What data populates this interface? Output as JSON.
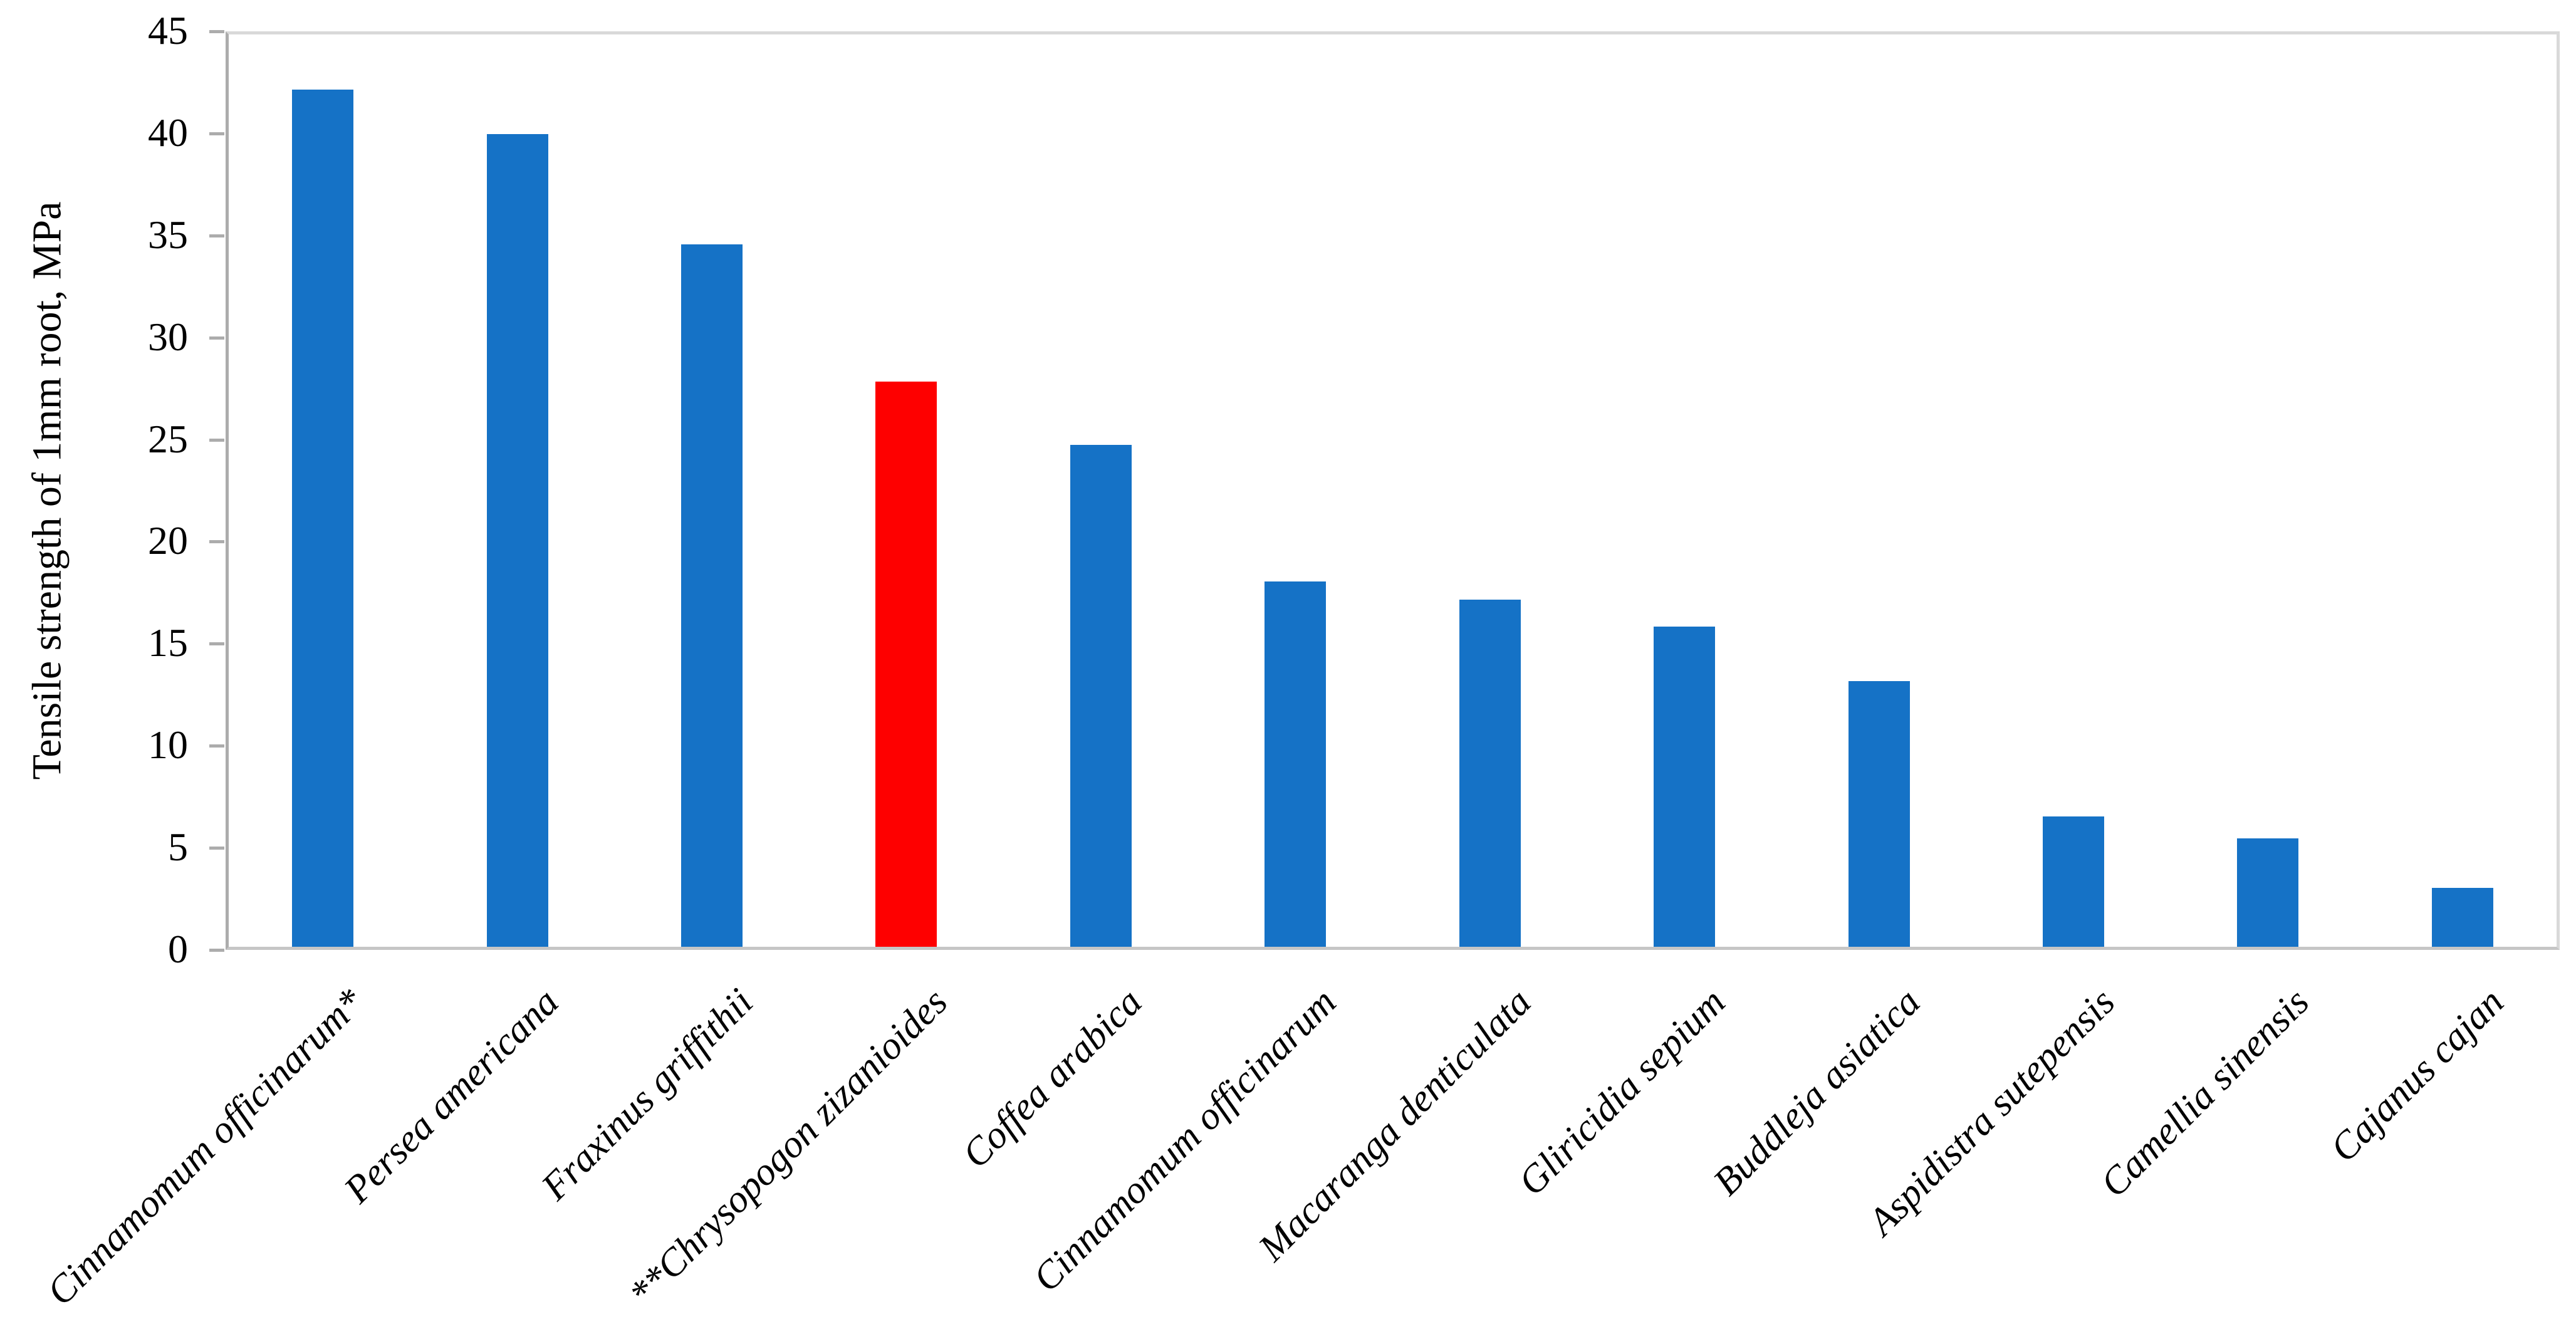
{
  "chart_data": {
    "type": "bar",
    "title": "",
    "xlabel": "",
    "ylabel": "Tensile strength of 1mm root, MPa",
    "ylim": [
      0,
      45
    ],
    "yticks": [
      0,
      5,
      10,
      15,
      20,
      25,
      30,
      35,
      40,
      45
    ],
    "grid": false,
    "legend_position": "none",
    "category_text_style": "italic, rotated 45 degrees",
    "categories": [
      "Cinnamomum officinarum*",
      "Persea americana",
      "Fraxinus griffithii",
      "**Chrysopogon zizanioides",
      "Coffea arabica",
      "Cinnamomum officinarum",
      "Macaranga denticulata",
      "Gliricidia sepium",
      "Buddleja asiatica",
      "Aspidistra sutepensis",
      "Camellia sinensis",
      "Cajanus cajan"
    ],
    "values": [
      42.0,
      39.8,
      34.4,
      27.7,
      24.6,
      17.9,
      17.0,
      15.7,
      13.0,
      6.4,
      5.3,
      2.9
    ],
    "bar_colors": [
      "#1572C6",
      "#1572C6",
      "#1572C6",
      "#FE0000",
      "#1572C6",
      "#1572C6",
      "#1572C6",
      "#1572C6",
      "#1572C6",
      "#1572C6",
      "#1572C6",
      "#1572C6"
    ],
    "highlighted_category": "**Chrysopogon zizanioides",
    "highlight_color": "#FE0000"
  },
  "colors": {
    "bar_blue": "#1572C6",
    "bar_red": "#FE0000",
    "axis_line": "#ACACAC",
    "plot_border": "#D9D9D9",
    "text": "#000000",
    "background": "#FFFFFF"
  }
}
